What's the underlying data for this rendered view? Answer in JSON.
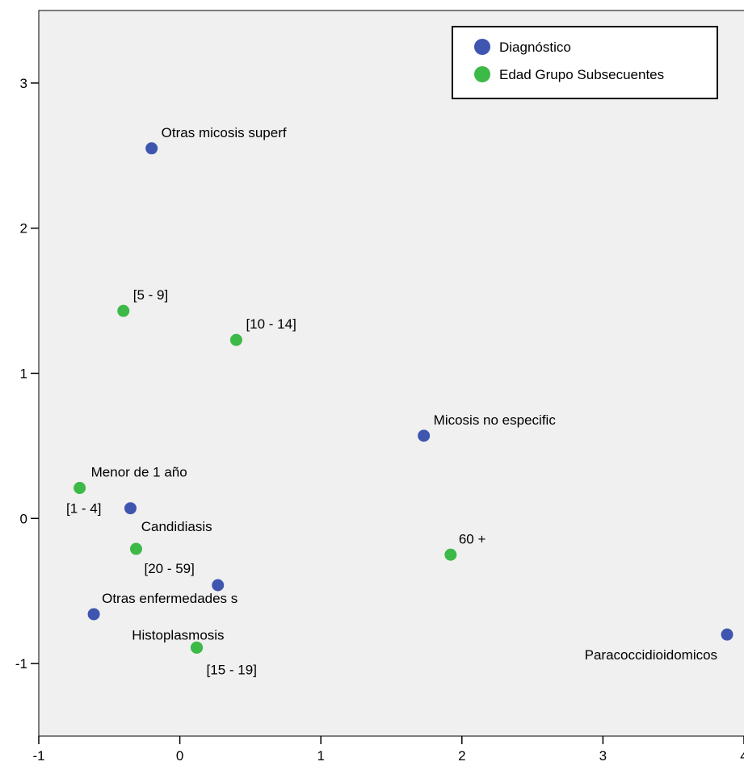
{
  "chart_data": {
    "type": "scatter",
    "xlim": [
      -1,
      4
    ],
    "ylim": [
      -1.5,
      3.5
    ],
    "x_ticks": [
      -1,
      0,
      1,
      2,
      3,
      4
    ],
    "y_ticks": [
      -1,
      0,
      1,
      2,
      3
    ],
    "grid": false,
    "legend": "top-right",
    "series": [
      {
        "name": "Diagnóstico",
        "color": "#3f56b0",
        "points": [
          {
            "label": "Otras micosis superf",
            "x": -0.2,
            "y": 2.55,
            "anchor": "start",
            "dx": 12,
            "dy": -14
          },
          {
            "label": "Micosis no especific",
            "x": 1.73,
            "y": 0.57,
            "anchor": "start",
            "dx": 12,
            "dy": -14
          },
          {
            "label": "[1 - 4]",
            "x": -0.35,
            "y": 0.07,
            "anchor": "end",
            "dx": -36,
            "dy": 6
          },
          {
            "label": "Candidiasis",
            "x": 0.27,
            "y": -0.46,
            "anchor": "start",
            "dx": -95,
            "dy": -67
          },
          {
            "label": "Otras enfermedades s",
            "x": -0.61,
            "y": -0.66,
            "anchor": "start",
            "dx": 10,
            "dy": -14
          },
          {
            "label": "Paracoccidioidomicos",
            "x": 3.88,
            "y": -0.8,
            "anchor": "end",
            "dx": -12,
            "dy": 31
          }
        ]
      },
      {
        "name": "Edad Grupo Subsecuentes",
        "color": "#3cb947",
        "points": [
          {
            "label": "[5 - 9]",
            "x": -0.4,
            "y": 1.43,
            "anchor": "start",
            "dx": 12,
            "dy": -14
          },
          {
            "label": "[10 - 14]",
            "x": 0.4,
            "y": 1.23,
            "anchor": "start",
            "dx": 12,
            "dy": -14
          },
          {
            "label": "Menor de 1 año",
            "x": -0.71,
            "y": 0.21,
            "anchor": "start",
            "dx": 14,
            "dy": -14
          },
          {
            "label": "[20 - 59]",
            "x": -0.31,
            "y": -0.21,
            "anchor": "start",
            "dx": 10,
            "dy": 30
          },
          {
            "label": "60 +",
            "x": 1.92,
            "y": -0.25,
            "anchor": "start",
            "dx": 10,
            "dy": -14
          },
          {
            "label": "Histoplasmosis",
            "x": 0.12,
            "y": -0.89,
            "anchor": "end",
            "dx": 34,
            "dy": -10
          },
          {
            "label": "[15 - 19]",
            "x": 0.12,
            "y": -0.89,
            "anchor": "start",
            "dx": 12,
            "dy": 33
          }
        ]
      }
    ]
  }
}
